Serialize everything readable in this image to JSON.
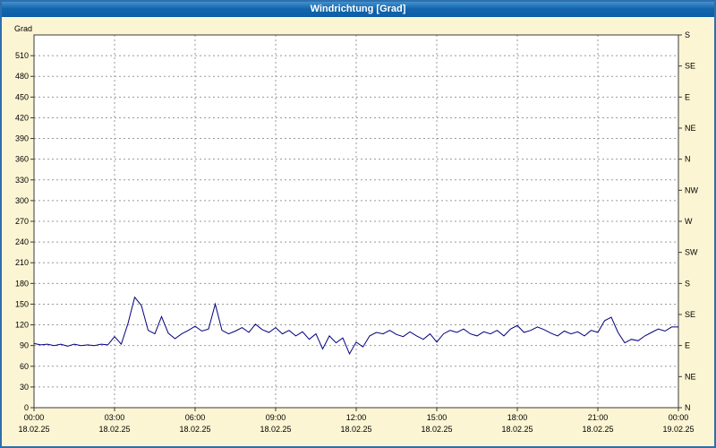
{
  "window": {
    "title": "Windrichtung [Grad]"
  },
  "colors": {
    "background": "#fcf5d3",
    "plot_background": "#ffffff",
    "grid": "#999999",
    "axis": "#3a3a3a",
    "text": "#000000",
    "border": "#2f6fad",
    "line": "#00007f"
  },
  "chart_data": {
    "type": "line",
    "title": "Windrichtung [Grad]",
    "ylabel": "Grad",
    "ylim": [
      0,
      540
    ],
    "xlim_hours": [
      0,
      24
    ],
    "grid": true,
    "legend": "none",
    "left_axis_ticks": [
      0,
      30,
      60,
      90,
      120,
      150,
      180,
      210,
      240,
      270,
      300,
      330,
      360,
      390,
      420,
      450,
      480,
      510
    ],
    "right_axis_ticks": [
      {
        "deg": 0,
        "label": "N"
      },
      {
        "deg": 45,
        "label": "NE"
      },
      {
        "deg": 90,
        "label": "E"
      },
      {
        "deg": 135,
        "label": "SE"
      },
      {
        "deg": 180,
        "label": "S"
      },
      {
        "deg": 225,
        "label": "SW"
      },
      {
        "deg": 270,
        "label": "W"
      },
      {
        "deg": 315,
        "label": "NW"
      },
      {
        "deg": 360,
        "label": "N"
      },
      {
        "deg": 405,
        "label": "NE"
      },
      {
        "deg": 450,
        "label": "E"
      },
      {
        "deg": 495,
        "label": "SE"
      },
      {
        "deg": 540,
        "label": "S"
      }
    ],
    "x_ticks": [
      {
        "hour": 0,
        "time": "00:00",
        "date": "18.02.25"
      },
      {
        "hour": 3,
        "time": "03:00",
        "date": "18.02.25"
      },
      {
        "hour": 6,
        "time": "06:00",
        "date": "18.02.25"
      },
      {
        "hour": 9,
        "time": "09:00",
        "date": "18.02.25"
      },
      {
        "hour": 12,
        "time": "12:00",
        "date": "18.02.25"
      },
      {
        "hour": 15,
        "time": "15:00",
        "date": "18.02.25"
      },
      {
        "hour": 18,
        "time": "18:00",
        "date": "18.02.25"
      },
      {
        "hour": 21,
        "time": "21:00",
        "date": "18.02.25"
      },
      {
        "hour": 24,
        "time": "00:00",
        "date": "19.02.25"
      }
    ],
    "series": [
      {
        "name": "Windrichtung",
        "color": "#00007f",
        "x_start_hour": 0,
        "x_step_hours": 0.25,
        "values": [
          93,
          91,
          92,
          90,
          92,
          89,
          92,
          90,
          91,
          90,
          92,
          91,
          103,
          92,
          122,
          160,
          148,
          112,
          107,
          132,
          108,
          100,
          107,
          112,
          118,
          111,
          114,
          150,
          112,
          107,
          111,
          116,
          109,
          121,
          113,
          109,
          116,
          107,
          112,
          104,
          110,
          99,
          107,
          85,
          104,
          94,
          101,
          78,
          95,
          88,
          104,
          109,
          107,
          112,
          106,
          103,
          110,
          104,
          99,
          107,
          95,
          107,
          112,
          109,
          114,
          107,
          104,
          110,
          107,
          112,
          104,
          114,
          119,
          109,
          112,
          117,
          113,
          108,
          104,
          111,
          107,
          110,
          104,
          112,
          109,
          126,
          131,
          109,
          94,
          99,
          97,
          104,
          109,
          114,
          111,
          117,
          117
        ]
      }
    ]
  }
}
